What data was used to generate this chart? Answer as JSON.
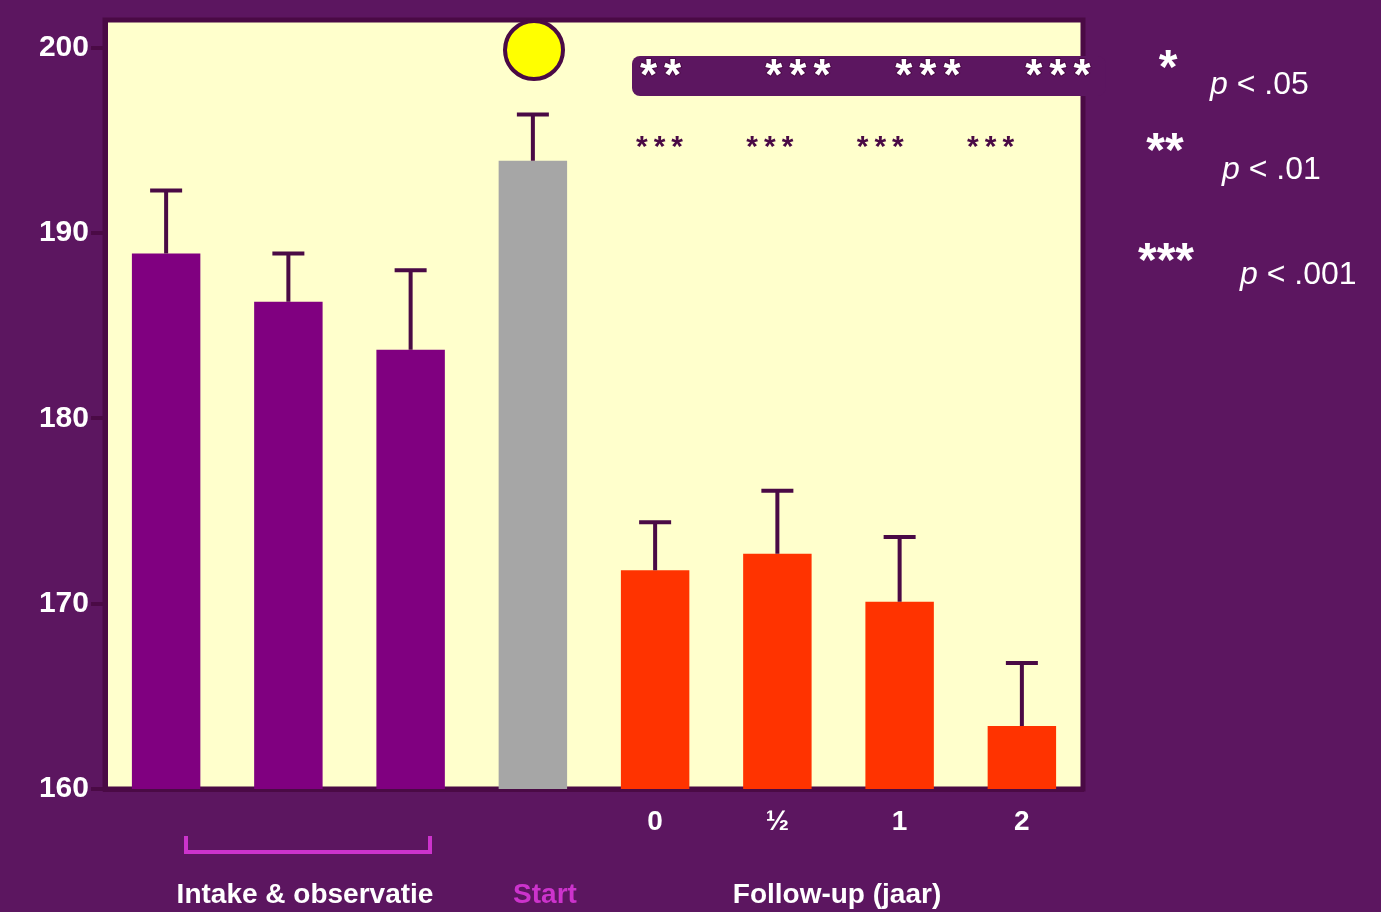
{
  "chart_data": {
    "type": "bar",
    "categories": [
      null,
      null,
      null,
      null,
      "0",
      "½",
      "1",
      "2"
    ],
    "values": [
      188.9,
      186.3,
      183.7,
      193.9,
      171.8,
      172.7,
      170.1,
      163.4
    ],
    "colors": [
      "#800080",
      "#800080",
      "#800080",
      "#a6a6a6",
      "#ff3300",
      "#ff3300",
      "#ff3300",
      "#ff3300"
    ],
    "errors": [
      [
        188.9,
        192.3
      ],
      [
        186.3,
        188.9
      ],
      [
        183.7,
        188.0
      ],
      [
        193.9,
        196.4
      ],
      [
        171.8,
        174.4
      ],
      [
        172.7,
        176.1
      ],
      [
        170.1,
        173.6
      ],
      [
        163.4,
        166.8
      ]
    ],
    "ylim": [
      160,
      201.5
    ],
    "yticks": [
      160,
      170,
      180,
      190,
      200
    ],
    "grid": false,
    "legend": false,
    "annotations": [
      "Intake & observatie",
      "Start",
      "Follow-up (jaar)",
      "**    ***   ***   ***",
      "***    ***    ***    ***",
      "*",
      "p < .05",
      "**",
      "p < .01",
      "***",
      "p < .001"
    ]
  }
}
